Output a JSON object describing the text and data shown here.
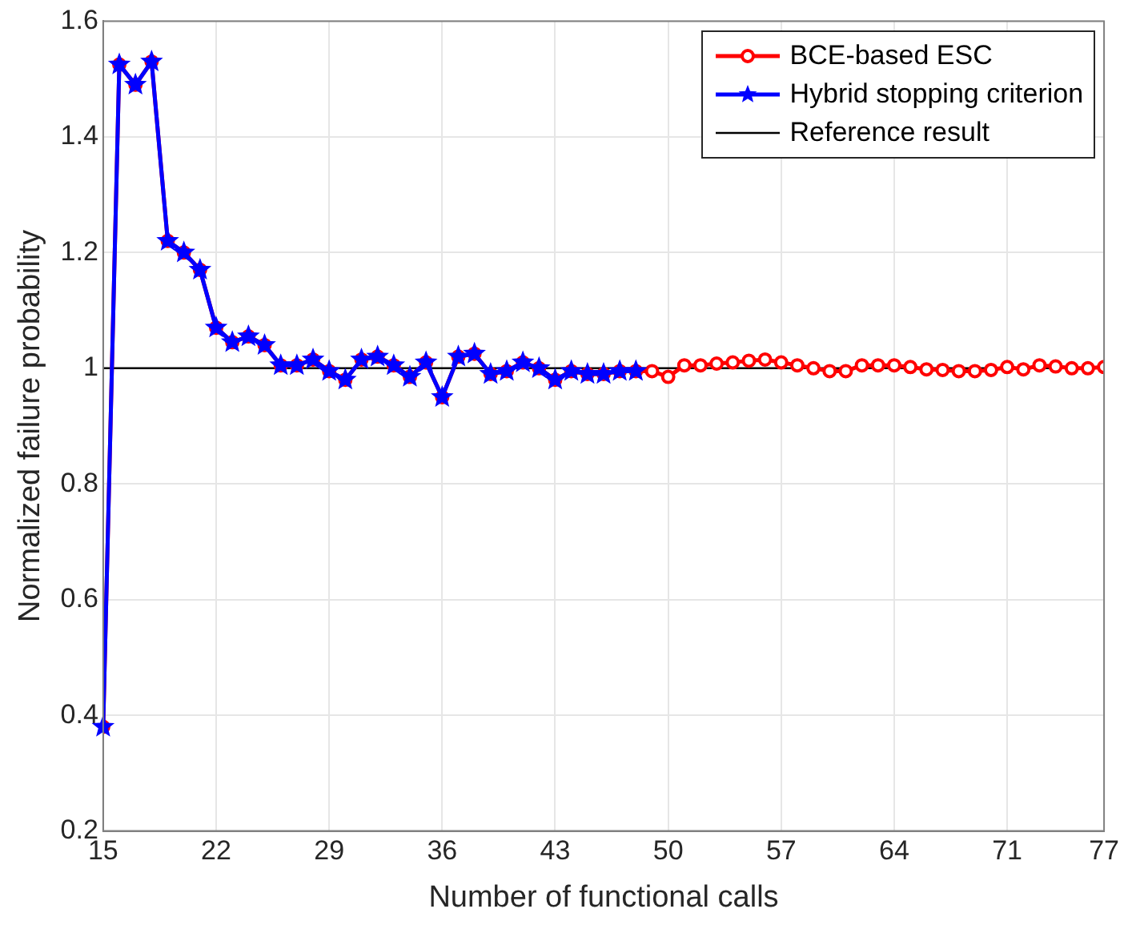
{
  "chart_data": {
    "type": "line",
    "xlabel": "Number of functional calls",
    "ylabel": "Normalized failure probability",
    "xlim": [
      15,
      77
    ],
    "xticks": [
      15,
      22,
      29,
      36,
      43,
      50,
      57,
      64,
      71,
      77
    ],
    "ylim": [
      0.2,
      1.6
    ],
    "yticks": [
      0.2,
      0.4,
      0.6,
      0.8,
      1,
      1.2,
      1.4,
      1.6
    ],
    "grid": true,
    "legend": "top right",
    "line_style": "solid",
    "series": [
      {
        "name": "BCE-based ESC",
        "color": "#ff0000",
        "marker": "circle",
        "x": [
          15,
          16,
          17,
          18,
          19,
          20,
          21,
          22,
          23,
          24,
          25,
          26,
          27,
          28,
          29,
          30,
          31,
          32,
          33,
          34,
          35,
          36,
          37,
          38,
          39,
          40,
          41,
          42,
          43,
          44,
          45,
          46,
          47,
          48,
          49,
          50,
          51,
          52,
          53,
          54,
          55,
          56,
          57,
          58,
          59,
          60,
          61,
          62,
          63,
          64,
          65,
          66,
          67,
          68,
          69,
          70,
          71,
          72,
          73,
          74,
          75,
          76,
          77
        ],
        "values": [
          0.38,
          1.525,
          1.49,
          1.53,
          1.22,
          1.2,
          1.17,
          1.07,
          1.045,
          1.055,
          1.04,
          1.005,
          1.005,
          1.015,
          0.995,
          0.98,
          1.015,
          1.02,
          1.005,
          0.985,
          1.01,
          0.95,
          1.02,
          1.025,
          0.99,
          0.995,
          1.01,
          1.0,
          0.98,
          0.995,
          0.99,
          0.99,
          0.995,
          0.995,
          0.995,
          0.985,
          1.005,
          1.005,
          1.008,
          1.01,
          1.013,
          1.015,
          1.01,
          1.005,
          1.0,
          0.995,
          0.995,
          1.005,
          1.005,
          1.005,
          1.002,
          0.998,
          0.997,
          0.995,
          0.995,
          0.997,
          1.002,
          0.998,
          1.005,
          1.003,
          1.0,
          1.0,
          1.002
        ]
      },
      {
        "name": "Hybrid stopping criterion",
        "color": "#0000ff",
        "marker": "star",
        "x": [
          15,
          16,
          17,
          18,
          19,
          20,
          21,
          22,
          23,
          24,
          25,
          26,
          27,
          28,
          29,
          30,
          31,
          32,
          33,
          34,
          35,
          36,
          37,
          38,
          39,
          40,
          41,
          42,
          43,
          44,
          45,
          46,
          47,
          48
        ],
        "values": [
          0.38,
          1.525,
          1.49,
          1.53,
          1.22,
          1.2,
          1.17,
          1.07,
          1.045,
          1.055,
          1.04,
          1.005,
          1.005,
          1.015,
          0.995,
          0.98,
          1.015,
          1.02,
          1.005,
          0.985,
          1.01,
          0.95,
          1.02,
          1.025,
          0.99,
          0.995,
          1.01,
          1.0,
          0.98,
          0.995,
          0.99,
          0.99,
          0.995,
          0.995
        ]
      }
    ],
    "ref_lines": [
      {
        "axis": "y",
        "value": 1,
        "label": "Reference result",
        "color": "#000000",
        "line_style": "solid"
      }
    ]
  }
}
